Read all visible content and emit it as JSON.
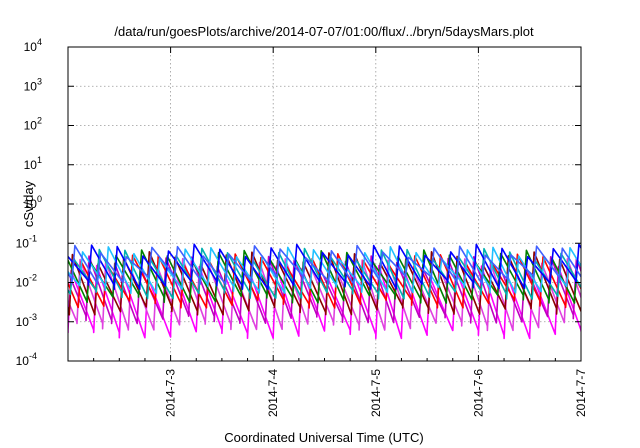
{
  "chart_data": {
    "type": "line",
    "title": "/data/run/goesPlots/archive/2014-07-07/01:00/flux/../bryn/5daysMars.plot",
    "xlabel": "Coordinated Universal Time (UTC)",
    "ylabel": "cSv/day",
    "yscale": "log",
    "ylim": [
      0.0001,
      10000
    ],
    "y_ticks": [
      {
        "base": "10",
        "exp": "4"
      },
      {
        "base": "10",
        "exp": "3"
      },
      {
        "base": "10",
        "exp": "2"
      },
      {
        "base": "10",
        "exp": "1"
      },
      {
        "base": "10",
        "exp": "0"
      },
      {
        "base": "10",
        "exp": "-1"
      },
      {
        "base": "10",
        "exp": "-2"
      },
      {
        "base": "10",
        "exp": "-3"
      },
      {
        "base": "10",
        "exp": "-4"
      }
    ],
    "x_ticks": [
      "2014-7-3",
      "2014-7-4",
      "2014-7-5",
      "2014-7-6",
      "2014-7-7"
    ],
    "xlim": [
      "2014-07-02 00:00",
      "2014-07-07 00:00"
    ],
    "grid": true,
    "sawtooth_period_hours": 6,
    "series": [
      {
        "color": "#ff00ff",
        "peak": 0.02,
        "trough": 0.0005
      },
      {
        "color": "#e040e0",
        "peak": 0.03,
        "trough": 0.0008
      },
      {
        "color": "#c000c0",
        "peak": 0.035,
        "trough": 0.0012
      },
      {
        "color": "#8b0000",
        "peak": 0.045,
        "trough": 0.002
      },
      {
        "color": "#ff0000",
        "peak": 0.04,
        "trough": 0.003
      },
      {
        "color": "#008000",
        "peak": 0.05,
        "trough": 0.004
      },
      {
        "color": "#00b0b0",
        "peak": 0.055,
        "trough": 0.005
      },
      {
        "color": "#20c0ff",
        "peak": 0.06,
        "trough": 0.007
      },
      {
        "color": "#0000ff",
        "peak": 0.07,
        "trough": 0.009
      },
      {
        "color": "#4060ff",
        "peak": 0.065,
        "trough": 0.012
      }
    ]
  }
}
